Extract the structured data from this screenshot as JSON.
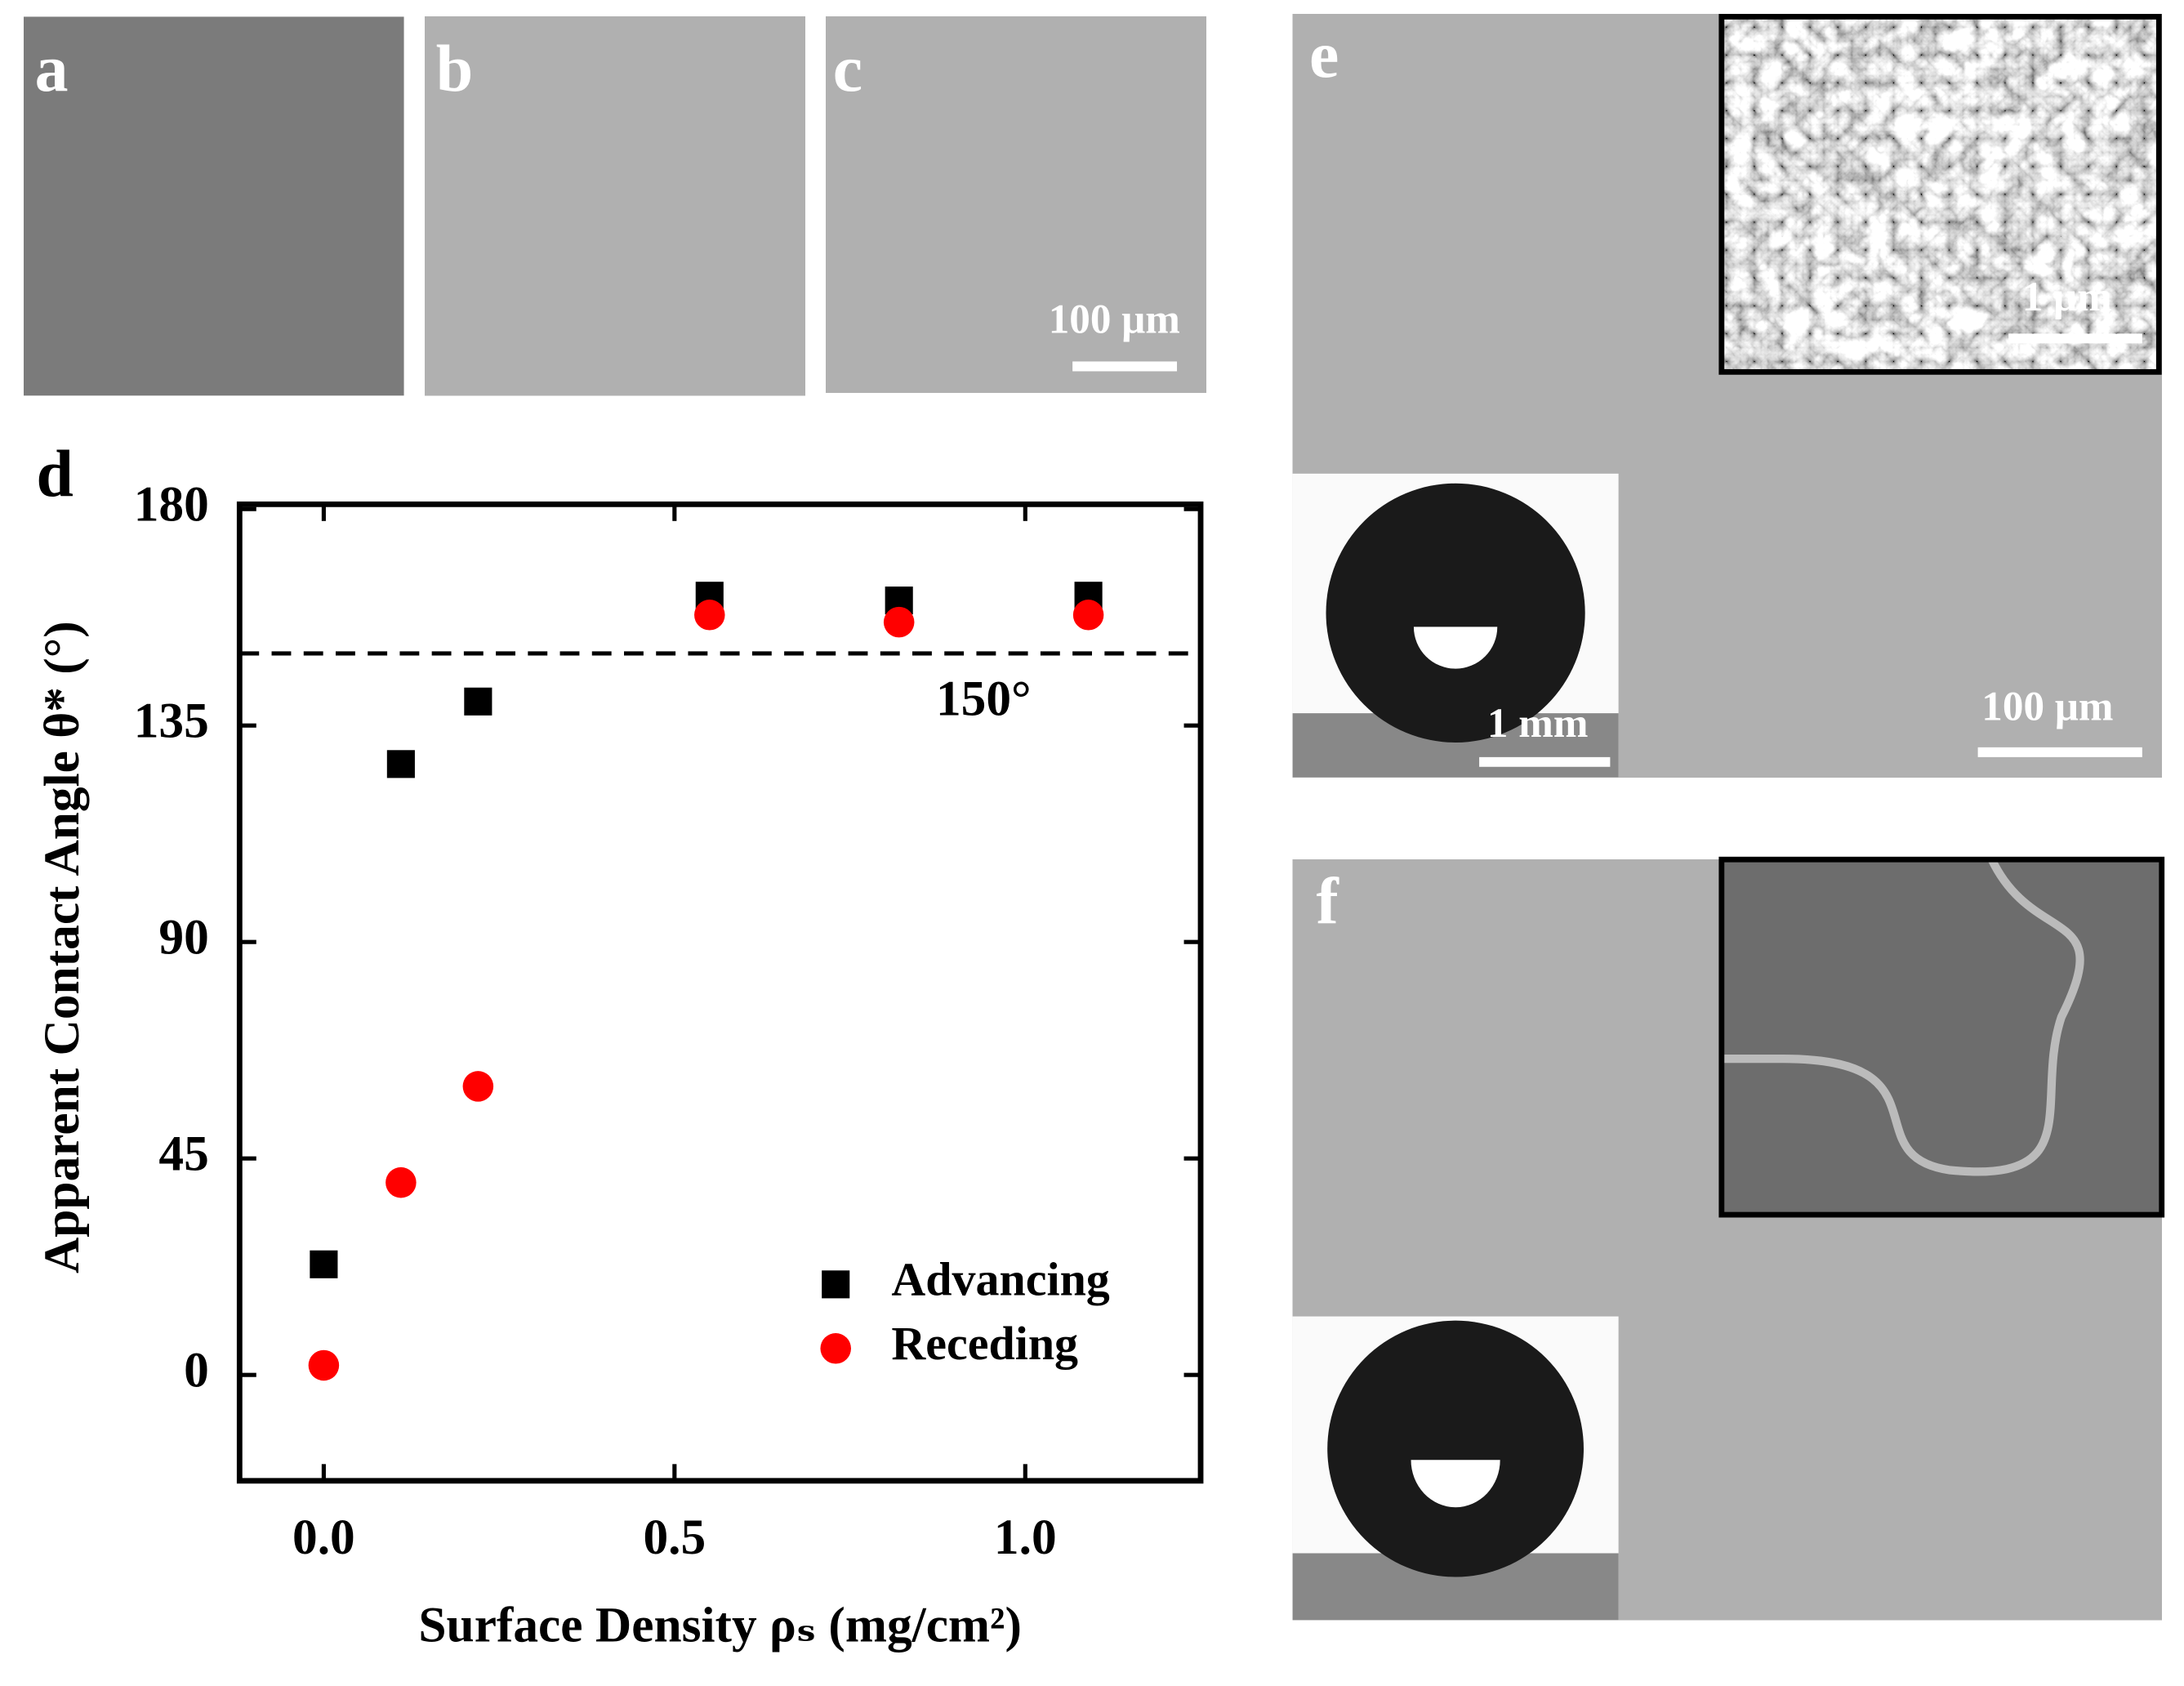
{
  "panel_labels": [
    "a",
    "b",
    "c",
    "d",
    "e",
    "f"
  ],
  "scale_bars": [
    "100 μm",
    "1 μm",
    "1 mm",
    "100 μm"
  ],
  "chart_data": {
    "type": "scatter",
    "x_label": "Surface Density ρₛ (mg/cm²)",
    "y_label": "Apparent Contact Angle θ* (°)",
    "xlim": [
      -0.12,
      1.25
    ],
    "ylim": [
      -22,
      181
    ],
    "xticks": [
      {
        "value": 0,
        "label": "0.0"
      },
      {
        "value": 0.5,
        "label": "0.5"
      },
      {
        "value": 1,
        "label": "1.0"
      }
    ],
    "yticks": [
      0,
      45,
      90,
      135,
      180
    ],
    "reference_line": {
      "value": 150,
      "label": "150°"
    },
    "legend": "lower right",
    "series": [
      {
        "name": "Advancing",
        "color": "#000000",
        "marker": "square",
        "x": [
          0,
          0.11,
          0.22,
          0.55,
          0.82,
          1.09
        ],
        "values": [
          23,
          127,
          140,
          162,
          161,
          162
        ]
      },
      {
        "name": "Receding",
        "color": "#ff0000",
        "marker": "circle",
        "x": [
          0,
          0.11,
          0.22,
          0.55,
          0.82,
          1.09
        ],
        "values": [
          2,
          40,
          60,
          158,
          156.5,
          158
        ]
      }
    ]
  }
}
